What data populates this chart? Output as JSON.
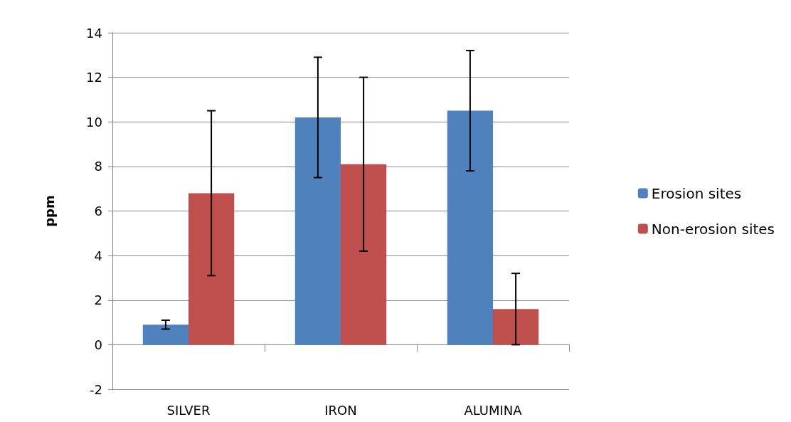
{
  "chart_data": {
    "type": "bar",
    "ylabel": "ppm",
    "categories": [
      "SILVER",
      "IRON",
      "ALUMINA"
    ],
    "series": [
      {
        "name": "Erosion sites",
        "color": "#4f81bd",
        "values": [
          0.9,
          10.2,
          10.5
        ],
        "errors": [
          0.2,
          2.7,
          2.7
        ]
      },
      {
        "name": "Non-erosion sites",
        "color": "#c0504d",
        "values": [
          6.8,
          8.1,
          1.6
        ],
        "errors": [
          3.7,
          3.9,
          1.6
        ]
      }
    ],
    "ylim": [
      -2,
      14
    ],
    "yticks": [
      -2,
      0,
      2,
      4,
      6,
      8,
      10,
      12,
      14
    ],
    "grid": "y",
    "legend": "right"
  }
}
